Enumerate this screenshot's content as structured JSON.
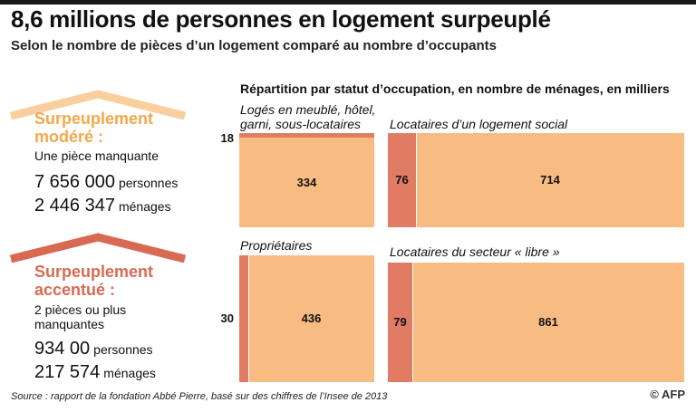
{
  "header": {
    "title": "8,6 millions de personnes en logement surpeuplé",
    "subtitle": "Selon le nombre de pièces d’un logement comparé au nombre d’occupants"
  },
  "categories": [
    {
      "title_line1": "Surpeuplement",
      "title_line2": "modéré :",
      "desc_line1": "Une pièce manquante",
      "desc_line2": "",
      "persons_value": "7 656 000",
      "persons_unit": "personnes",
      "households_value": "2 446 347",
      "households_unit": "ménages",
      "color": "#F4A84A",
      "roof_color": "#F9CF9E"
    },
    {
      "title_line1": "Surpeuplement",
      "title_line2": "accentué :",
      "desc_line1": "2 pièces ou plus",
      "desc_line2": "manquantes",
      "persons_value": "934 00",
      "persons_unit": "personnes",
      "households_value": "217 574",
      "households_unit": "ménages",
      "color": "#D96A52",
      "roof_color": "#D96A52"
    }
  ],
  "chart_data": {
    "type": "bar",
    "title": "Répartition par statut d’occupation, en nombre de ménages, en milliers",
    "series": [
      {
        "name": "Surpeuplement accentué",
        "color": "#E07B64"
      },
      {
        "name": "Surpeuplement modéré",
        "color": "#F8BC82"
      }
    ],
    "panels": [
      {
        "label_line1": "Logés en meublé, hôtel,",
        "label_line2": "garni, sous-locataires",
        "accentue": 18,
        "modere": 334,
        "layout": "stacked"
      },
      {
        "label_line1": "Locataires d’un logement social",
        "label_line2": "",
        "accentue": 76,
        "modere": 714,
        "layout": "side"
      },
      {
        "label_line1": "Propriétaires",
        "label_line2": "",
        "accentue": 30,
        "modere": 436,
        "layout": "side-small"
      },
      {
        "label_line1": "Locataires du secteur « libre »",
        "label_line2": "",
        "accentue": 79,
        "modere": 861,
        "layout": "side"
      }
    ]
  },
  "footer": {
    "source": "Source : rapport de la fondation Abbé Pierre, basé sur des chiffres de l’Insee de 2013",
    "credit": "© AFP"
  }
}
